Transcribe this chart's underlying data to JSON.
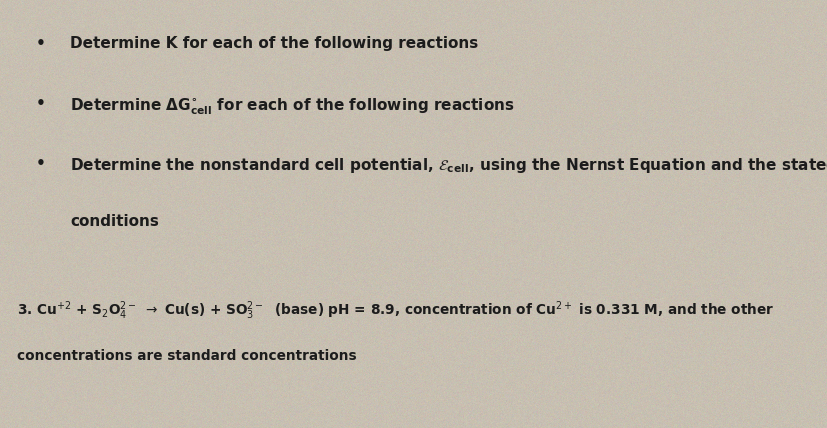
{
  "background_color": "#c8c0b2",
  "fig_width": 8.28,
  "fig_height": 4.28,
  "dpi": 100,
  "bullet1": "Determine K for each of the following reactions",
  "bullet2": "Determine $\\mathbf{\\Delta G^{\\circ}_{cell}}$ for each of the following reactions",
  "bullet3a": "Determine the nonstandard cell potential, $\\mathbf{\\mathcal{E}_{cell}}$, using the Nernst Equation and the stated",
  "bullet3b": "conditions",
  "line4": "3. Cu$^{+2}$ + S$_2$O$_4^{2-}$ $\\rightarrow$ Cu(s) + SO$_3^{2-}$  (base) pH = 8.9, concentration of Cu$^{2+}$ is 0.331 M, and the other",
  "line5": "concentrations are standard concentrations",
  "text_color": "#1c1c1c",
  "font_size": 11.0,
  "font_size_body": 9.8
}
